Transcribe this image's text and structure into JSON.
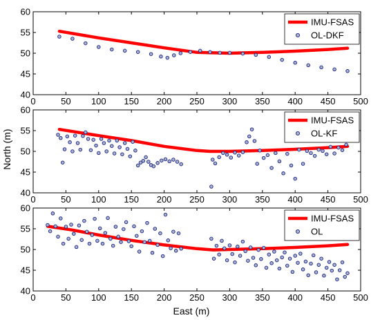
{
  "figure": {
    "ylabel": "North (m)",
    "xlabel": "East (m)"
  },
  "colors": {
    "reference": "#ff0000",
    "marker_edge": "#1b1f8a",
    "marker_fill": "#a7b4c8",
    "axes": "#000000"
  },
  "chart_data": [
    {
      "type": "scatter",
      "xlim": [
        0,
        500
      ],
      "ylim": [
        40,
        60
      ],
      "xticks": [
        "0",
        "50",
        "100",
        "150",
        "200",
        "250",
        "300",
        "350",
        "400",
        "450",
        "500"
      ],
      "yticks": [
        "40",
        "45",
        "50",
        "55",
        "60"
      ],
      "legend_position": "top-right",
      "series": [
        {
          "name": "IMU-FSAS",
          "style": "line",
          "x": [
            40,
            100,
            150,
            200,
            250,
            300,
            350,
            400,
            450,
            480
          ],
          "y": [
            55.3,
            53.7,
            52.5,
            51.3,
            50.2,
            50.0,
            50.2,
            50.5,
            50.9,
            51.2
          ]
        },
        {
          "name": "OL-DKF",
          "style": "markers",
          "x": [
            40,
            60,
            80,
            100,
            120,
            140,
            160,
            180,
            195,
            205,
            215,
            225,
            240,
            255,
            270,
            285,
            300,
            320,
            340,
            360,
            380,
            400,
            420,
            440,
            460,
            480
          ],
          "y": [
            54.0,
            53.5,
            52.4,
            51.5,
            50.9,
            50.6,
            50.3,
            49.8,
            49.2,
            48.9,
            49.5,
            50.0,
            50.3,
            50.6,
            50.3,
            50.1,
            50.1,
            49.9,
            49.6,
            49.1,
            48.4,
            47.7,
            47.1,
            46.6,
            46.1,
            45.7
          ]
        }
      ]
    },
    {
      "type": "scatter",
      "xlim": [
        0,
        500
      ],
      "ylim": [
        40,
        60
      ],
      "xticks": [
        "0",
        "50",
        "100",
        "150",
        "200",
        "250",
        "300",
        "350",
        "400",
        "450",
        "500"
      ],
      "yticks": [
        "40",
        "45",
        "50",
        "55",
        "60"
      ],
      "legend_position": "top-right",
      "series": [
        {
          "name": "IMU-FSAS",
          "style": "line",
          "x": [
            40,
            100,
            150,
            200,
            250,
            270,
            300,
            350,
            400,
            450,
            480
          ],
          "y": [
            55.3,
            53.8,
            52.6,
            51.2,
            50.2,
            50.0,
            50.0,
            50.2,
            50.5,
            50.9,
            51.2
          ]
        },
        {
          "name": "OL-KF",
          "style": "markers",
          "x": [
            38,
            42,
            45,
            48,
            52,
            56,
            60,
            64,
            68,
            72,
            76,
            80,
            84,
            88,
            92,
            96,
            100,
            104,
            108,
            112,
            116,
            120,
            124,
            128,
            132,
            136,
            140,
            144,
            148,
            152,
            156,
            160,
            164,
            168,
            172,
            176,
            180,
            184,
            190,
            196,
            202,
            208,
            214,
            220,
            226,
            272,
            274,
            278,
            284,
            290,
            296,
            302,
            308,
            314,
            320,
            326,
            330,
            334,
            338,
            342,
            346,
            352,
            358,
            364,
            370,
            376,
            382,
            388,
            394,
            400,
            406,
            412,
            418,
            424,
            430,
            436,
            442,
            448,
            454,
            460,
            466,
            472,
            478
          ],
          "y": [
            54.0,
            53.2,
            47.3,
            50.5,
            53.6,
            52.2,
            50.0,
            53.8,
            52.0,
            50.4,
            53.7,
            54.6,
            53.0,
            50.3,
            52.8,
            51.4,
            49.6,
            53.0,
            52.0,
            50.0,
            52.6,
            51.3,
            49.5,
            52.6,
            51.0,
            49.3,
            52.0,
            50.6,
            48.8,
            52.3,
            50.2,
            46.6,
            47.3,
            47.7,
            48.6,
            47.5,
            46.7,
            46.4,
            47.2,
            47.8,
            48.1,
            47.6,
            48.0,
            47.5,
            46.9,
            41.5,
            48.0,
            47.1,
            48.6,
            49.6,
            49.2,
            48.5,
            49.7,
            49.0,
            49.8,
            52.2,
            53.6,
            55.3,
            52.5,
            47.0,
            50.2,
            48.4,
            49.1,
            46.0,
            49.6,
            47.6,
            44.7,
            49.4,
            46.6,
            43.4,
            50.4,
            47.0,
            50.1,
            49.6,
            48.9,
            50.4,
            50.1,
            49.3,
            51.1,
            49.5,
            50.9,
            50.3,
            51.6
          ]
        }
      ]
    },
    {
      "type": "scatter",
      "xlim": [
        0,
        500
      ],
      "ylim": [
        40,
        60
      ],
      "xticks": [
        "0",
        "50",
        "100",
        "150",
        "200",
        "250",
        "300",
        "350",
        "400",
        "450",
        "500"
      ],
      "yticks": [
        "40",
        "45",
        "50",
        "55",
        "60"
      ],
      "legend_position": "top-right",
      "series": [
        {
          "name": "IMU-FSAS",
          "style": "line",
          "x": [
            22,
            60,
            100,
            150,
            200,
            250,
            275,
            300,
            350,
            400,
            450,
            480
          ],
          "y": [
            55.6,
            54.7,
            53.5,
            52.2,
            51.1,
            50.2,
            49.9,
            50.0,
            50.2,
            50.5,
            50.9,
            51.2
          ]
        },
        {
          "name": "OL",
          "style": "markers",
          "x": [
            22,
            26,
            30,
            34,
            38,
            42,
            46,
            50,
            54,
            58,
            62,
            66,
            70,
            74,
            78,
            82,
            86,
            90,
            94,
            98,
            102,
            106,
            110,
            114,
            118,
            122,
            126,
            130,
            134,
            138,
            142,
            146,
            150,
            154,
            158,
            162,
            166,
            170,
            174,
            178,
            182,
            186,
            190,
            194,
            198,
            202,
            206,
            210,
            214,
            218,
            222,
            226,
            272,
            276,
            280,
            284,
            288,
            292,
            296,
            300,
            304,
            308,
            312,
            316,
            320,
            324,
            328,
            332,
            336,
            340,
            344,
            348,
            352,
            356,
            360,
            364,
            368,
            372,
            376,
            380,
            384,
            388,
            392,
            396,
            400,
            404,
            408,
            412,
            416,
            420,
            424,
            428,
            432,
            436,
            440,
            444,
            448,
            452,
            456,
            460,
            464,
            468,
            472,
            476,
            480
          ],
          "y": [
            55.9,
            54.4,
            58.7,
            55.6,
            53.1,
            57.5,
            51.4,
            55.5,
            52.6,
            56.0,
            53.8,
            50.6,
            55.8,
            52.3,
            56.9,
            54.3,
            51.4,
            53.5,
            57.4,
            52.1,
            55.1,
            51.4,
            54.0,
            57.6,
            52.6,
            50.9,
            55.5,
            53.1,
            51.8,
            54.9,
            56.6,
            52.0,
            50.8,
            55.6,
            53.3,
            49.5,
            54.4,
            51.8,
            56.4,
            52.1,
            49.2,
            55.0,
            51.1,
            53.9,
            48.4,
            58.4,
            52.2,
            50.3,
            54.3,
            49.7,
            53.9,
            50.2,
            52.6,
            47.8,
            50.9,
            48.8,
            52.1,
            50.3,
            47.4,
            51.0,
            48.9,
            46.9,
            50.7,
            48.5,
            51.9,
            49.6,
            47.3,
            50.5,
            48.0,
            46.2,
            49.9,
            47.7,
            50.4,
            45.6,
            48.8,
            46.7,
            49.5,
            47.4,
            45.4,
            48.1,
            49.3,
            46.1,
            47.8,
            44.6,
            48.5,
            46.8,
            49.0,
            45.2,
            47.1,
            43.8,
            46.6,
            48.6,
            44.5,
            46.3,
            47.8,
            43.7,
            45.6,
            47.0,
            44.9,
            46.3,
            42.8,
            45.0,
            46.9,
            43.4,
            44.3
          ]
        }
      ]
    }
  ]
}
